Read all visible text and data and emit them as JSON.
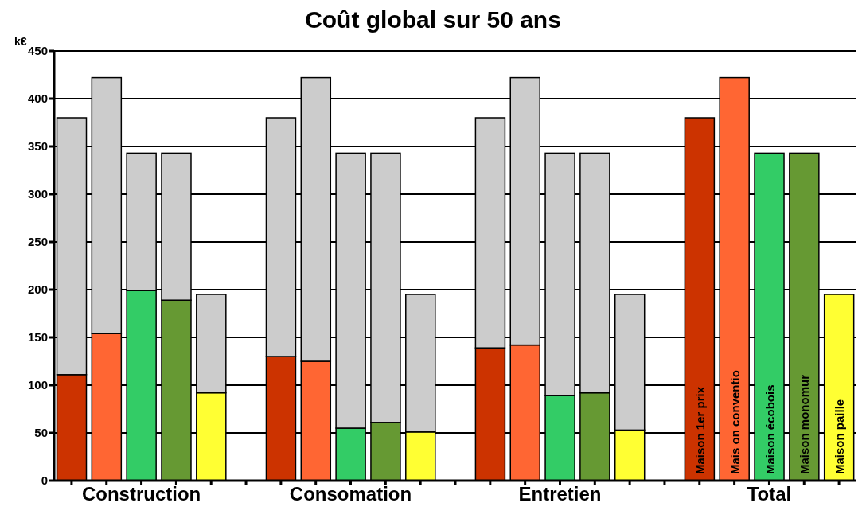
{
  "chart_data": {
    "type": "bar",
    "title": "Coût global sur 50 ans",
    "ylabel": "k€",
    "stacked": true,
    "categories": [
      null,
      null,
      "Construction",
      null,
      null,
      null,
      null,
      null,
      "Consomation",
      null,
      null,
      null,
      null,
      null,
      "Entretien",
      null,
      null,
      null,
      null,
      null,
      "Total",
      null,
      null
    ],
    "series": [
      {
        "name": "Maison 1er prix",
        "color": "#cc3300",
        "values": [
          111,
          null,
          null,
          null,
          null,
          null,
          130,
          null,
          null,
          null,
          null,
          null,
          139,
          null,
          null,
          null,
          null,
          null,
          380,
          null,
          null,
          null,
          null
        ]
      },
      {
        "name": "Mais on conventio",
        "color": "#ff6633",
        "values": [
          null,
          154,
          null,
          null,
          null,
          null,
          null,
          125,
          null,
          null,
          null,
          null,
          null,
          142,
          null,
          null,
          null,
          null,
          null,
          422,
          null,
          null,
          null
        ]
      },
      {
        "name": "Maison écobois",
        "color": "#33cc66",
        "values": [
          null,
          null,
          199,
          null,
          null,
          null,
          null,
          null,
          55,
          null,
          null,
          null,
          null,
          null,
          89,
          null,
          null,
          null,
          null,
          null,
          343,
          null,
          null
        ]
      },
      {
        "name": "Maison monomur",
        "color": "#669933",
        "values": [
          null,
          null,
          null,
          189,
          null,
          null,
          null,
          null,
          null,
          61,
          null,
          null,
          null,
          null,
          null,
          92,
          null,
          null,
          null,
          null,
          null,
          343,
          null
        ]
      },
      {
        "name": "Maison paille",
        "color": "#ffff33",
        "values": [
          null,
          null,
          null,
          null,
          92,
          null,
          null,
          null,
          null,
          null,
          51,
          null,
          null,
          null,
          null,
          null,
          53,
          null,
          null,
          null,
          null,
          null,
          195
        ]
      },
      {
        "color": "#cccccc",
        "values": [
          269,
          268,
          144,
          154,
          103,
          null,
          250,
          297,
          288,
          282,
          144,
          null,
          241,
          280,
          254,
          251,
          142,
          null,
          null,
          null,
          null,
          null,
          null
        ]
      }
    ],
    "ylim": [
      0,
      450
    ],
    "yticks": [
      0,
      50,
      100,
      150,
      200,
      250,
      300,
      350,
      400,
      450
    ],
    "grid": "y",
    "legend": false
  }
}
